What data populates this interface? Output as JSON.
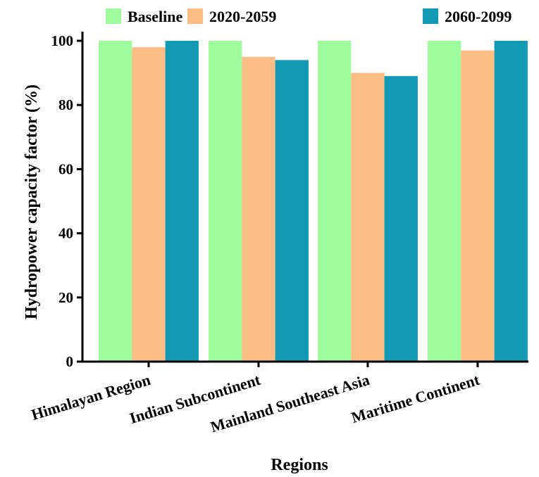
{
  "chart_data": {
    "type": "bar",
    "title": "",
    "xlabel": "Regions",
    "ylabel": "Hydropower capacity factor (%)",
    "ylim": [
      0,
      100
    ],
    "yticks": [
      0,
      20,
      40,
      60,
      80,
      100
    ],
    "categories": [
      "Himalayan Region",
      "Indian Subcontinent",
      "Mainland Southeast Asia",
      "Maritime Continent"
    ],
    "series": [
      {
        "name": "Baseline",
        "color": "#9efc9c",
        "values": [
          100,
          100,
          100,
          100
        ]
      },
      {
        "name": "2020-2059",
        "color": "#fbbd83",
        "values": [
          98,
          95,
          90,
          97
        ]
      },
      {
        "name": "2060-2099",
        "color": "#129ab5",
        "values": [
          100,
          94,
          89,
          100
        ]
      }
    ],
    "legend": "top",
    "grid": false
  }
}
